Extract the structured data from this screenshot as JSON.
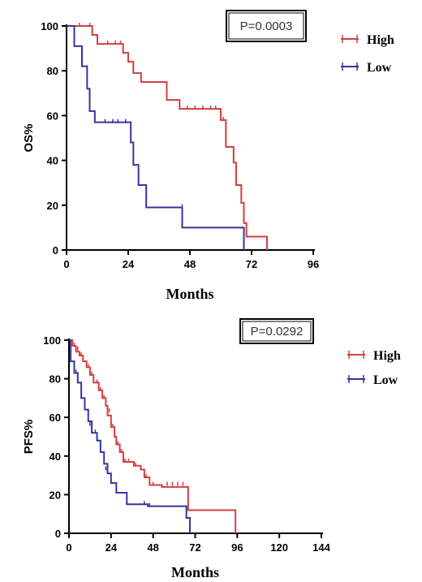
{
  "chart_data": [
    {
      "type": "line",
      "subtype": "kaplan-meier",
      "xlabel": "Months",
      "ylabel": "OS%",
      "xlim": [
        0,
        96
      ],
      "ylim": [
        0,
        100
      ],
      "xticks": [
        0,
        24,
        48,
        72,
        96
      ],
      "yticks": [
        0,
        20,
        40,
        60,
        80,
        100
      ],
      "annotation": "P=0.0003",
      "legend_position": "right",
      "series": [
        {
          "name": "High",
          "color": "#d43f3f",
          "steps": [
            [
              0,
              100
            ],
            [
              10,
              96
            ],
            [
              12,
              92
            ],
            [
              22,
              88
            ],
            [
              24,
              84
            ],
            [
              26,
              79
            ],
            [
              29,
              75
            ],
            [
              39,
              67
            ],
            [
              44,
              63
            ],
            [
              60,
              58
            ],
            [
              62,
              46
            ],
            [
              65,
              39
            ],
            [
              66,
              29
            ],
            [
              68,
              21
            ],
            [
              69,
              12
            ],
            [
              70,
              6
            ],
            [
              78,
              0
            ]
          ],
          "censors": [
            [
              5,
              100
            ],
            [
              9,
              100
            ],
            [
              16,
              92
            ],
            [
              19,
              92
            ],
            [
              21,
              92
            ],
            [
              44,
              63
            ],
            [
              47,
              63
            ],
            [
              50,
              63
            ],
            [
              53,
              63
            ],
            [
              56,
              63
            ],
            [
              58,
              63
            ],
            [
              61,
              58
            ]
          ]
        },
        {
          "name": "Low",
          "color": "#3535a0",
          "steps": [
            [
              0,
              100
            ],
            [
              3,
              91
            ],
            [
              6,
              82
            ],
            [
              8,
              72
            ],
            [
              9,
              62
            ],
            [
              11,
              57
            ],
            [
              25,
              48
            ],
            [
              26,
              38
            ],
            [
              28,
              29
            ],
            [
              31,
              19
            ],
            [
              45,
              10
            ],
            [
              69,
              0
            ]
          ],
          "censors": [
            [
              15,
              57
            ],
            [
              18,
              57
            ],
            [
              20,
              57
            ],
            [
              23,
              57
            ],
            [
              45,
              19
            ]
          ]
        }
      ]
    },
    {
      "type": "line",
      "subtype": "kaplan-meier",
      "xlabel": "Months",
      "ylabel": "PFS%",
      "xlim": [
        0,
        144
      ],
      "ylim": [
        0,
        100
      ],
      "xticks": [
        0,
        24,
        48,
        72,
        96,
        120,
        144
      ],
      "yticks": [
        0,
        20,
        40,
        60,
        80,
        100
      ],
      "annotation": "P=0.0292",
      "legend_position": "right",
      "series": [
        {
          "name": "High",
          "color": "#d43f3f",
          "steps": [
            [
              0,
              100
            ],
            [
              2,
              97
            ],
            [
              4,
              94
            ],
            [
              6,
              92
            ],
            [
              8,
              89
            ],
            [
              10,
              86
            ],
            [
              12,
              82
            ],
            [
              14,
              78
            ],
            [
              17,
              74
            ],
            [
              19,
              70
            ],
            [
              21,
              66
            ],
            [
              22,
              61
            ],
            [
              24,
              55
            ],
            [
              26,
              50
            ],
            [
              27,
              46
            ],
            [
              29,
              42
            ],
            [
              31,
              37
            ],
            [
              37,
              35
            ],
            [
              41,
              33
            ],
            [
              43,
              29
            ],
            [
              46,
              25
            ],
            [
              53,
              24
            ],
            [
              68,
              12
            ],
            [
              95,
              0
            ]
          ],
          "censors": [
            [
              3,
              97
            ],
            [
              5,
              95
            ],
            [
              7,
              92
            ],
            [
              11,
              86
            ],
            [
              13,
              82
            ],
            [
              16,
              78
            ],
            [
              18,
              74
            ],
            [
              20,
              70
            ],
            [
              23,
              63
            ],
            [
              25,
              55
            ],
            [
              28,
              46
            ],
            [
              30,
              42
            ],
            [
              32,
              37
            ],
            [
              34,
              37
            ],
            [
              38,
              35
            ],
            [
              44,
              29
            ],
            [
              48,
              25
            ],
            [
              56,
              25
            ],
            [
              59,
              25
            ],
            [
              62,
              25
            ],
            [
              65,
              25
            ]
          ]
        },
        {
          "name": "Low",
          "color": "#3535a0",
          "steps": [
            [
              0,
              100
            ],
            [
              1,
              89
            ],
            [
              3,
              83
            ],
            [
              5,
              78
            ],
            [
              7,
              70
            ],
            [
              9,
              64
            ],
            [
              11,
              58
            ],
            [
              13,
              52
            ],
            [
              16,
              48
            ],
            [
              18,
              42
            ],
            [
              20,
              36
            ],
            [
              22,
              31
            ],
            [
              24,
              26
            ],
            [
              27,
              21
            ],
            [
              33,
              15
            ],
            [
              45,
              14
            ],
            [
              67,
              8
            ],
            [
              69,
              0
            ]
          ],
          "censors": [
            [
              4,
              83
            ],
            [
              12,
              56
            ],
            [
              15,
              52
            ],
            [
              21,
              33
            ],
            [
              43,
              15
            ],
            [
              46,
              14
            ]
          ]
        }
      ]
    }
  ]
}
